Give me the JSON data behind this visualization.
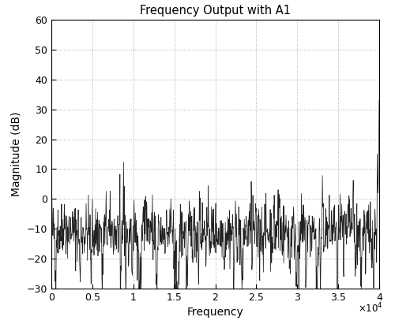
{
  "title": "Frequency Output with A1",
  "xlabel": "Frequency",
  "ylabel": "Magnitude (dB)",
  "xlim": [
    0,
    40000
  ],
  "ylim": [
    -30,
    60
  ],
  "yticks": [
    -30,
    -20,
    -10,
    0,
    10,
    20,
    30,
    40,
    50,
    60
  ],
  "xtick_values": [
    0,
    5000,
    10000,
    15000,
    20000,
    25000,
    30000,
    35000,
    40000
  ],
  "xtick_labels": [
    "0",
    "0.5",
    "1",
    "1.5",
    "2",
    "2.5",
    "3",
    "3.5",
    "4"
  ],
  "line_color": "#222222",
  "line_width": 0.55,
  "background_color": "#ffffff",
  "grid_color": "#aaaaaa",
  "seed": 42,
  "n_points": 1000,
  "noise_mean": -11,
  "noise_std": 5,
  "spike_start_val": 14,
  "end_spike_val": 33
}
